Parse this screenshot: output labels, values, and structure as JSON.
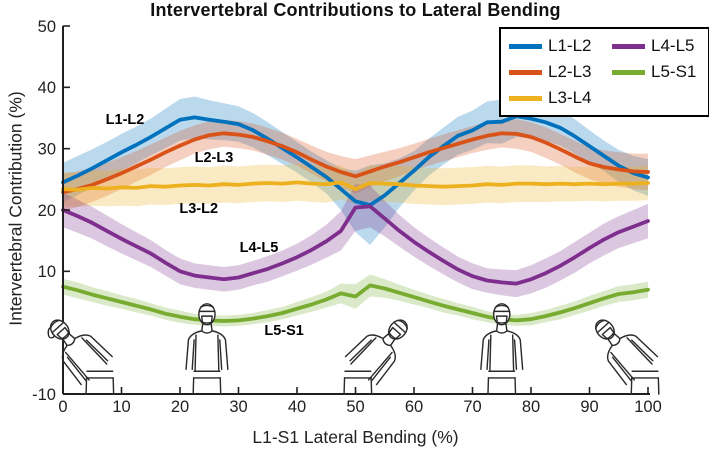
{
  "chart_data": {
    "type": "line",
    "title": "Intervertebral Contributions to Lateral Bending",
    "xlabel": "L1-S1 Lateral Bending (%)",
    "ylabel": "Intervertebral Contribution (%)",
    "xlim": [
      0,
      100
    ],
    "ylim": [
      -10,
      50
    ],
    "xticks": [
      0,
      10,
      20,
      30,
      40,
      50,
      60,
      70,
      80,
      90,
      100
    ],
    "yticks": [
      -10,
      0,
      10,
      20,
      30,
      40,
      50
    ],
    "grid": false,
    "legend_position": "top-right",
    "band_note": "shaded bands show variability around each mean curve",
    "x": [
      0,
      2.5,
      5,
      7.5,
      10,
      12.5,
      15,
      17.5,
      20,
      22.5,
      25,
      27.5,
      30,
      32.5,
      35,
      37.5,
      40,
      42.5,
      45,
      47.5,
      50,
      52.5,
      55,
      57.5,
      60,
      62.5,
      65,
      67.5,
      70,
      72.5,
      75,
      77.5,
      80,
      82.5,
      85,
      87.5,
      90,
      92.5,
      95,
      97.5,
      100
    ],
    "series": [
      {
        "name": "L1-L2",
        "color": "#0072BD",
        "values": [
          24.5,
          25.6,
          26.8,
          28.1,
          29.4,
          30.6,
          31.9,
          33.3,
          34.7,
          35.1,
          34.7,
          34.4,
          34.0,
          33.0,
          31.6,
          30.1,
          28.6,
          27.0,
          25.4,
          23.4,
          21.4,
          20.8,
          22.4,
          24.4,
          26.4,
          28.6,
          30.4,
          32.1,
          33.0,
          34.3,
          34.4,
          35.3,
          34.9,
          34.3,
          33.4,
          32.0,
          30.4,
          28.8,
          27.2,
          26.0,
          25.3
        ],
        "band": [
          3.2,
          3.2,
          3.1,
          3.0,
          3.0,
          3.0,
          3.0,
          3.2,
          3.4,
          3.4,
          3.2,
          3.0,
          2.9,
          2.8,
          2.7,
          2.6,
          2.5,
          2.5,
          2.7,
          3.4,
          5.0,
          6.5,
          5.2,
          4.0,
          3.2,
          3.0,
          3.0,
          3.1,
          3.2,
          3.4,
          3.6,
          3.4,
          3.2,
          3.0,
          2.9,
          2.8,
          2.6,
          2.5,
          2.6,
          2.8,
          3.0
        ]
      },
      {
        "name": "L2-L3",
        "color": "#D95319",
        "values": [
          22.9,
          23.4,
          24.1,
          25.0,
          26.0,
          27.1,
          28.2,
          29.4,
          30.5,
          31.5,
          32.2,
          32.5,
          32.3,
          31.9,
          31.2,
          30.4,
          29.4,
          28.2,
          27.1,
          26.2,
          25.5,
          26.3,
          27.1,
          27.8,
          28.6,
          29.4,
          30.1,
          30.8,
          31.5,
          32.1,
          32.5,
          32.4,
          31.9,
          31.0,
          29.9,
          28.7,
          27.6,
          27.0,
          26.6,
          26.3,
          26.2
        ],
        "band": [
          3.0,
          2.9,
          2.8,
          2.7,
          2.6,
          2.5,
          2.5,
          2.4,
          2.4,
          2.3,
          2.3,
          2.2,
          2.2,
          2.2,
          2.2,
          2.2,
          2.2,
          2.3,
          2.4,
          2.6,
          2.8,
          2.6,
          2.4,
          2.3,
          2.2,
          2.2,
          2.2,
          2.2,
          2.2,
          2.3,
          2.3,
          2.4,
          2.4,
          2.5,
          2.5,
          2.6,
          2.6,
          2.7,
          2.8,
          2.9,
          3.0
        ]
      },
      {
        "name": "L3-L4",
        "color": "#EDB120",
        "values": [
          23.4,
          23.3,
          23.6,
          23.5,
          23.7,
          23.6,
          23.9,
          23.8,
          24.0,
          24.1,
          24.0,
          24.2,
          24.1,
          24.3,
          24.4,
          24.3,
          24.5,
          24.3,
          24.2,
          24.5,
          23.4,
          24.4,
          24.3,
          24.2,
          24.0,
          23.9,
          23.8,
          23.9,
          24.0,
          24.2,
          24.1,
          24.3,
          24.3,
          24.2,
          24.3,
          24.2,
          24.3,
          24.2,
          24.3,
          24.3,
          24.4
        ],
        "band": [
          2.8,
          2.8,
          2.9,
          2.9,
          3.0,
          3.0,
          3.0,
          3.0,
          3.0,
          3.0,
          3.0,
          3.0,
          3.0,
          3.0,
          3.0,
          3.0,
          3.0,
          3.0,
          3.0,
          2.8,
          2.4,
          2.8,
          3.0,
          3.0,
          3.0,
          3.0,
          3.0,
          3.0,
          3.0,
          3.0,
          3.0,
          3.0,
          3.0,
          2.9,
          2.9,
          2.8,
          2.8,
          2.8,
          2.8,
          2.8,
          2.8
        ]
      },
      {
        "name": "L4-L5",
        "color": "#7E2F8E",
        "values": [
          20.0,
          19.0,
          17.9,
          16.6,
          15.3,
          14.1,
          12.9,
          11.4,
          10.0,
          9.3,
          9.0,
          8.7,
          9.0,
          9.7,
          10.4,
          11.3,
          12.3,
          13.5,
          14.9,
          16.6,
          20.4,
          20.6,
          18.6,
          16.6,
          14.8,
          13.2,
          11.7,
          10.3,
          9.2,
          8.5,
          8.2,
          8.0,
          8.7,
          9.7,
          10.9,
          12.3,
          13.8,
          15.2,
          16.4,
          17.3,
          18.2
        ],
        "band": [
          2.8,
          2.7,
          2.6,
          2.5,
          2.4,
          2.3,
          2.2,
          2.1,
          2.1,
          2.0,
          2.0,
          2.0,
          2.0,
          2.0,
          2.1,
          2.1,
          2.2,
          2.4,
          2.7,
          3.2,
          3.8,
          3.4,
          2.9,
          2.6,
          2.4,
          2.3,
          2.2,
          2.1,
          2.1,
          2.0,
          2.1,
          2.2,
          2.3,
          2.4,
          2.4,
          2.5,
          2.5,
          2.6,
          2.6,
          2.7,
          2.8
        ]
      },
      {
        "name": "L5-S1",
        "color": "#77AC30",
        "values": [
          7.5,
          6.9,
          6.2,
          5.6,
          5.0,
          4.4,
          3.8,
          3.1,
          2.6,
          2.2,
          2.0,
          1.9,
          2.0,
          2.3,
          2.7,
          3.2,
          3.9,
          4.6,
          5.4,
          6.4,
          5.9,
          7.7,
          7.2,
          6.5,
          5.8,
          5.1,
          4.4,
          3.8,
          3.2,
          2.6,
          2.2,
          2.0,
          2.2,
          2.7,
          3.3,
          4.0,
          4.8,
          5.6,
          6.3,
          6.6,
          7.0
        ],
        "band": [
          1.3,
          1.3,
          1.2,
          1.2,
          1.1,
          1.1,
          1.0,
          1.0,
          1.0,
          0.9,
          0.9,
          0.9,
          0.9,
          0.9,
          1.0,
          1.0,
          1.1,
          1.2,
          1.3,
          1.6,
          2.0,
          1.8,
          1.5,
          1.3,
          1.2,
          1.1,
          1.1,
          1.0,
          1.0,
          0.9,
          0.9,
          0.9,
          1.0,
          1.0,
          1.1,
          1.1,
          1.2,
          1.2,
          1.3,
          1.3,
          1.3
        ]
      }
    ],
    "annotations": [
      {
        "text": "L1-L2",
        "x": 10.6,
        "y": 34.6
      },
      {
        "text": "L2-L3",
        "x": 25.8,
        "y": 28.5
      },
      {
        "text": "L3-L2",
        "x": 23.2,
        "y": 20.2
      },
      {
        "text": "L4-L5",
        "x": 33.5,
        "y": 13.8
      },
      {
        "text": "L5-S1",
        "x": 37.8,
        "y": 0.3
      }
    ],
    "figures": [
      {
        "pose": "bent-left",
        "x": 6.3
      },
      {
        "pose": "upright",
        "x": 24.6
      },
      {
        "pose": "bent-right",
        "x": 50.4
      },
      {
        "pose": "upright",
        "x": 75.0
      },
      {
        "pose": "bent-left",
        "x": 99.5
      }
    ]
  }
}
